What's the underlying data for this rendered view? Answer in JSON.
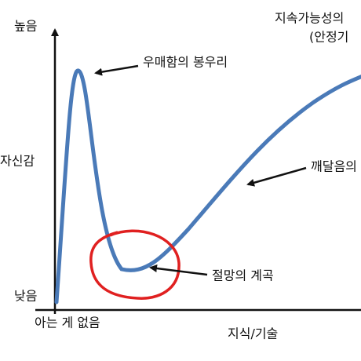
{
  "y_axis": {
    "high": "높음",
    "label": "자신감",
    "low": "낮음"
  },
  "x_axis": {
    "origin": "아는 게 없음",
    "label": "지식/기술"
  },
  "annotations": {
    "peak": "우매함의 봉우리",
    "valley": "절망의 계곡",
    "slope": "깨달음의",
    "plateau_1": "지속가능성의",
    "plateau_2": "(안정기"
  }
}
